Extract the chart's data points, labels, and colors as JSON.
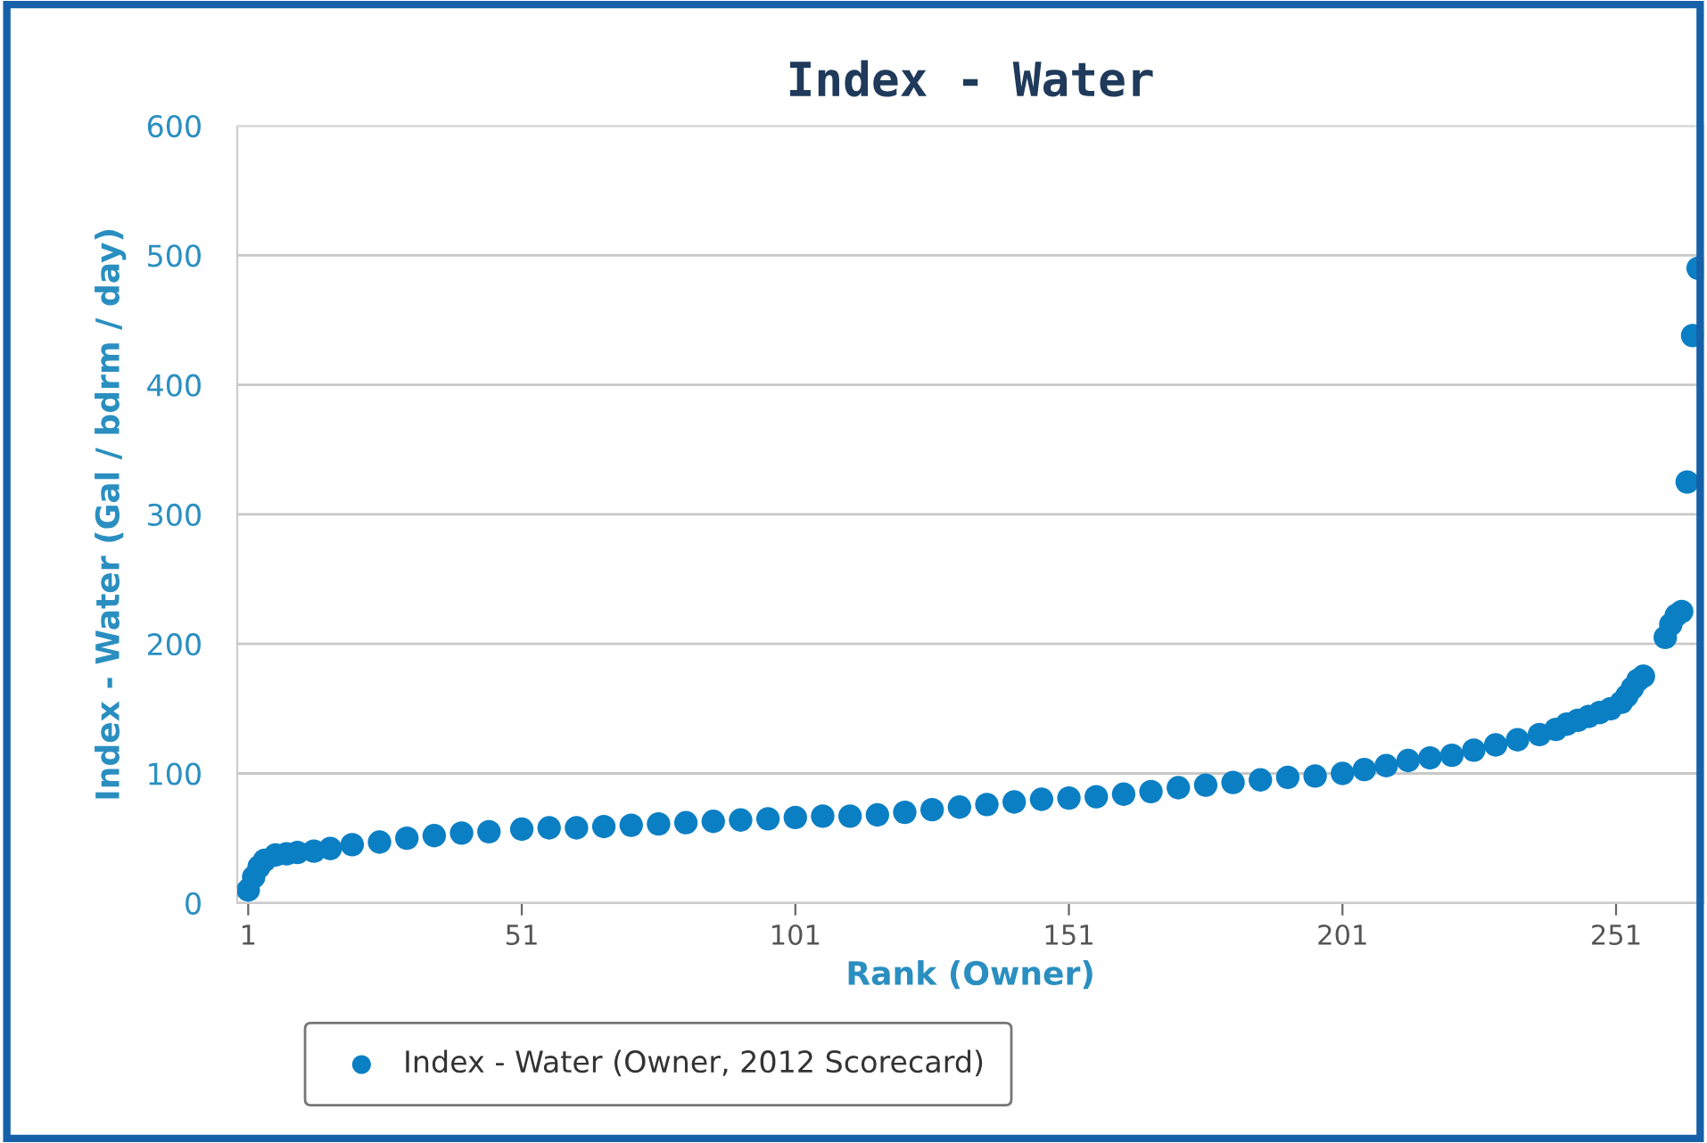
{
  "chart_data": {
    "type": "scatter",
    "title": "Index - Water",
    "xlabel": "Rank (Owner)",
    "ylabel": "Index - Water (Gal / bdrm / day)",
    "xlim": [
      -1,
      267
    ],
    "xticks": [
      1,
      51,
      101,
      151,
      201,
      251
    ],
    "ylim": [
      0,
      600
    ],
    "yticks": [
      0,
      100,
      200,
      300,
      400,
      500,
      600
    ],
    "grid": "y",
    "legend": "bottom",
    "marker": "circle",
    "series": [
      {
        "name": "Index - Water (Owner, 2012 Scorecard)",
        "color": "#0a7fc4",
        "x": [
          1,
          2,
          3,
          4,
          6,
          8,
          10,
          13,
          16,
          20,
          25,
          30,
          35,
          40,
          45,
          51,
          56,
          61,
          66,
          71,
          76,
          81,
          86,
          91,
          96,
          101,
          106,
          111,
          116,
          121,
          126,
          131,
          136,
          141,
          146,
          151,
          156,
          161,
          166,
          171,
          176,
          181,
          186,
          191,
          196,
          201,
          205,
          209,
          213,
          217,
          221,
          225,
          229,
          233,
          237,
          240,
          242,
          244,
          246,
          248,
          250,
          252,
          253,
          254,
          255,
          256,
          260,
          261,
          262,
          263,
          264,
          265,
          266
        ],
        "values": [
          10,
          20,
          28,
          33,
          37,
          38,
          39,
          40,
          42,
          45,
          47,
          50,
          52,
          54,
          55,
          57,
          58,
          58,
          59,
          60,
          61,
          62,
          63,
          64,
          65,
          66,
          67,
          67,
          68,
          70,
          72,
          74,
          76,
          78,
          80,
          81,
          82,
          84,
          86,
          89,
          91,
          93,
          95,
          97,
          98,
          100,
          103,
          106,
          110,
          112,
          114,
          118,
          122,
          126,
          130,
          134,
          138,
          141,
          144,
          147,
          150,
          155,
          160,
          166,
          172,
          175,
          205,
          215,
          222,
          225,
          325,
          438,
          490
        ]
      }
    ]
  }
}
